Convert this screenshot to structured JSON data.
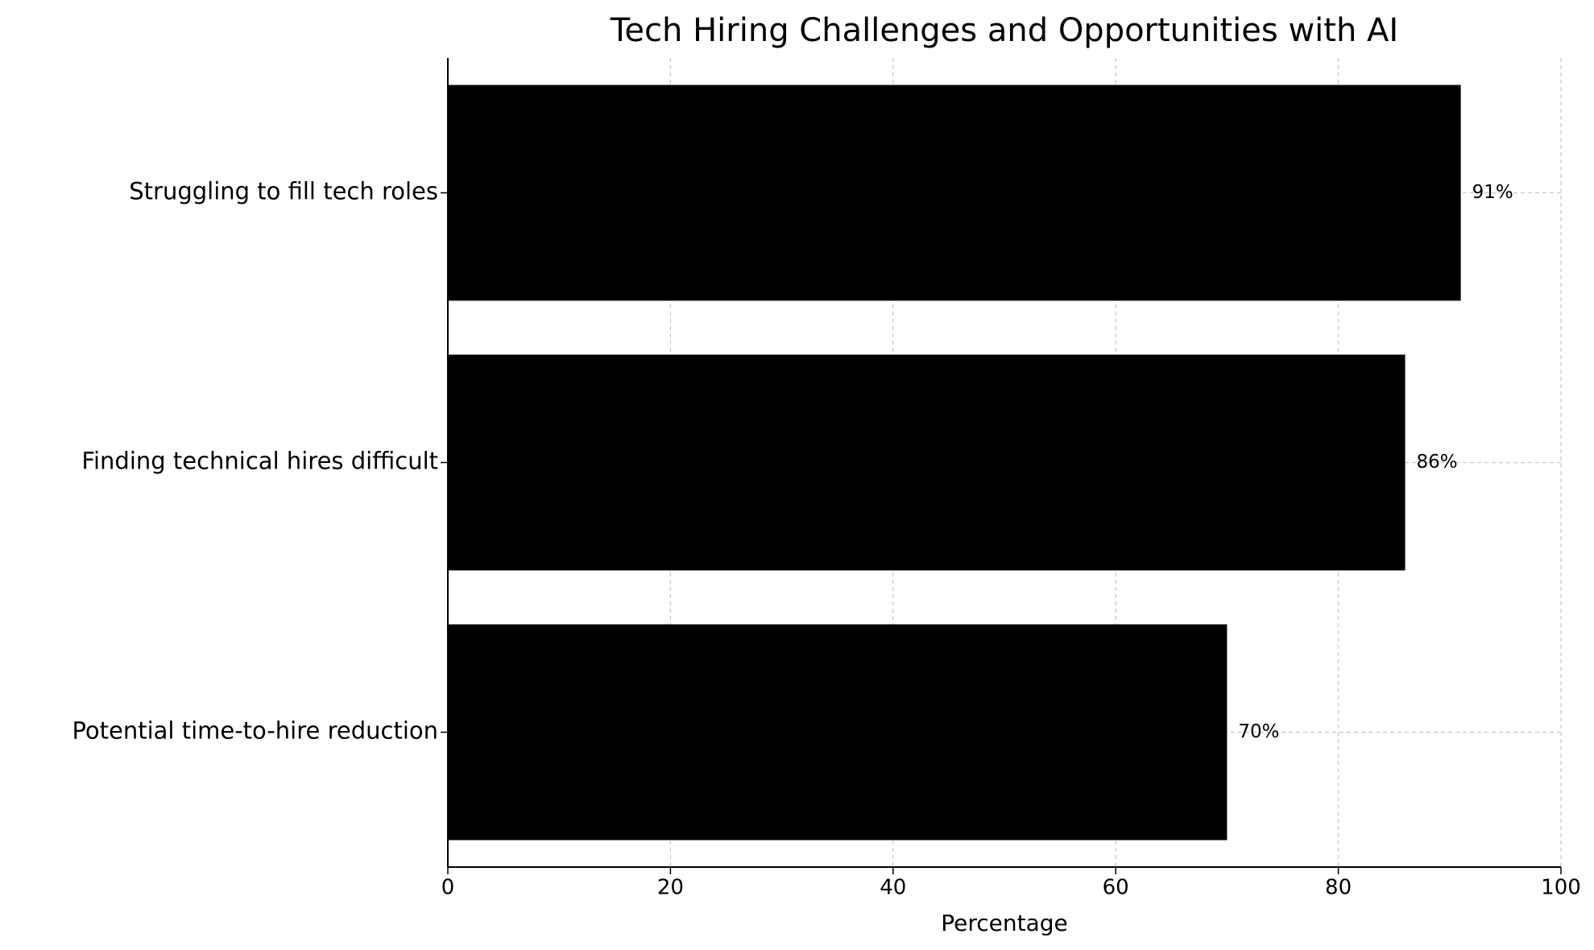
{
  "chart_data": {
    "type": "barh",
    "title": "Tech Hiring Challenges and Opportunities with AI",
    "xlabel": "Percentage",
    "categories": [
      "Struggling to fill tech roles",
      "Finding technical hires difficult",
      "Potential time-to-hire reduction"
    ],
    "values": [
      91,
      86,
      70
    ],
    "value_labels": [
      "91%",
      "86%",
      "70%"
    ],
    "color": "#000000",
    "xlim": [
      0,
      100
    ],
    "xticks": [
      0,
      20,
      40,
      60,
      80,
      100
    ],
    "grid": true
  }
}
